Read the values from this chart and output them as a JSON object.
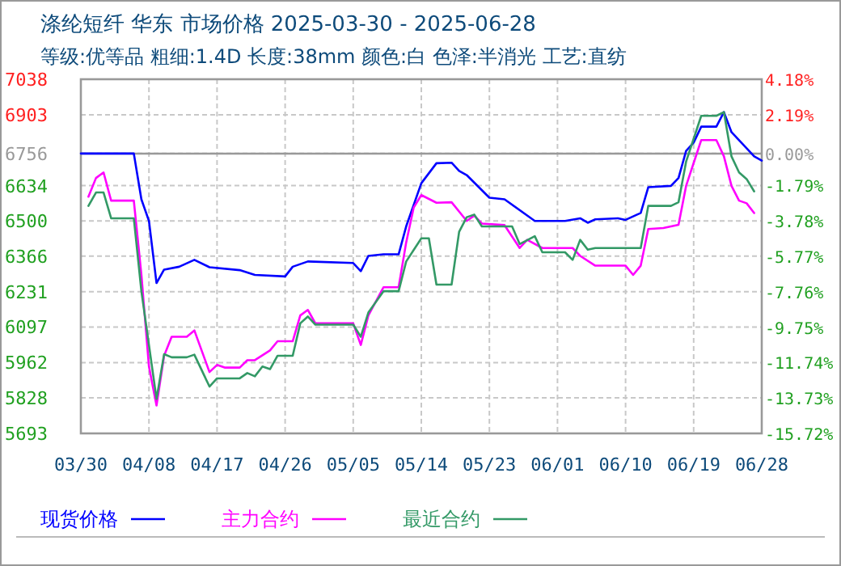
{
  "chart_data": {
    "type": "line",
    "title": "涤纶短纤 华东 市场价格 2025-03-30 - 2025-06-28",
    "subtitle": "等级:优等品 粗细:1.4D 长度:38mm 颜色:白 色泽:半消光 工艺:直纺",
    "series": [
      {
        "name": "现货价格",
        "color": "#0000ff",
        "x": [
          "2025-03-30",
          "2025-04-06",
          "2025-04-07",
          "2025-04-08",
          "2025-04-09",
          "2025-04-10",
          "2025-04-12",
          "2025-04-14",
          "2025-04-16",
          "2025-04-20",
          "2025-04-22",
          "2025-04-26",
          "2025-04-27",
          "2025-04-29",
          "2025-05-05",
          "2025-05-06",
          "2025-05-07",
          "2025-05-09",
          "2025-05-11",
          "2025-05-12",
          "2025-05-14",
          "2025-05-16",
          "2025-05-18",
          "2025-05-19",
          "2025-05-20",
          "2025-05-23",
          "2025-05-25",
          "2025-05-29",
          "2025-06-02",
          "2025-06-04",
          "2025-06-05",
          "2025-06-06",
          "2025-06-09",
          "2025-06-10",
          "2025-06-12",
          "2025-06-13",
          "2025-06-16",
          "2025-06-17",
          "2025-06-18",
          "2025-06-19",
          "2025-06-20",
          "2025-06-22",
          "2025-06-23",
          "2025-06-24",
          "2025-06-27",
          "2025-06-28"
        ],
        "values": [
          6756,
          6756,
          6582,
          6500,
          6264,
          6315,
          6326,
          6352,
          6324,
          6313,
          6295,
          6289,
          6326,
          6346,
          6340,
          6309,
          6367,
          6373,
          6373,
          6479,
          6643,
          6719,
          6721,
          6690,
          6674,
          6588,
          6582,
          6500,
          6500,
          6510,
          6493,
          6506,
          6510,
          6504,
          6530,
          6628,
          6633,
          6663,
          6766,
          6797,
          6858,
          6858,
          6913,
          6837,
          6745,
          6729
        ]
      },
      {
        "name": "主力合约",
        "color": "#ff00ff",
        "x": [
          "2025-03-31",
          "2025-04-01",
          "2025-04-02",
          "2025-04-03",
          "2025-04-06",
          "2025-04-07",
          "2025-04-08",
          "2025-04-09",
          "2025-04-10",
          "2025-04-11",
          "2025-04-13",
          "2025-04-14",
          "2025-04-16",
          "2025-04-17",
          "2025-04-18",
          "2025-04-20",
          "2025-04-21",
          "2025-04-22",
          "2025-04-24",
          "2025-04-25",
          "2025-04-27",
          "2025-04-28",
          "2025-04-29",
          "2025-04-30",
          "2025-05-05",
          "2025-05-06",
          "2025-05-07",
          "2025-05-09",
          "2025-05-11",
          "2025-05-12",
          "2025-05-13",
          "2025-05-14",
          "2025-05-16",
          "2025-05-18",
          "2025-05-20",
          "2025-05-21",
          "2025-05-22",
          "2025-05-25",
          "2025-05-27",
          "2025-05-28",
          "2025-05-30",
          "2025-06-03",
          "2025-06-04",
          "2025-06-06",
          "2025-06-10",
          "2025-06-11",
          "2025-06-12",
          "2025-06-13",
          "2025-06-15",
          "2025-06-17",
          "2025-06-18",
          "2025-06-20",
          "2025-06-22",
          "2025-06-23",
          "2025-06-24",
          "2025-06-25",
          "2025-06-26",
          "2025-06-27"
        ],
        "values": [
          6592,
          6663,
          6684,
          6577,
          6577,
          6295,
          5947,
          5799,
          5988,
          6060,
          6060,
          6084,
          5926,
          5953,
          5943,
          5943,
          5971,
          5971,
          6008,
          6043,
          6043,
          6141,
          6162,
          6111,
          6111,
          6029,
          6141,
          6248,
          6248,
          6418,
          6551,
          6598,
          6569,
          6571,
          6500,
          6520,
          6490,
          6484,
          6397,
          6428,
          6397,
          6397,
          6367,
          6330,
          6330,
          6295,
          6330,
          6469,
          6473,
          6485,
          6633,
          6807,
          6807,
          6745,
          6633,
          6577,
          6567,
          6530
        ]
      },
      {
        "name": "最近合约",
        "color": "#339966",
        "x": [
          "2025-03-31",
          "2025-04-01",
          "2025-04-02",
          "2025-04-03",
          "2025-04-06",
          "2025-04-07",
          "2025-04-08",
          "2025-04-09",
          "2025-04-10",
          "2025-04-11",
          "2025-04-13",
          "2025-04-14",
          "2025-04-16",
          "2025-04-17",
          "2025-04-20",
          "2025-04-21",
          "2025-04-22",
          "2025-04-23",
          "2025-04-24",
          "2025-04-25",
          "2025-04-27",
          "2025-04-28",
          "2025-04-29",
          "2025-04-30",
          "2025-05-05",
          "2025-05-06",
          "2025-05-07",
          "2025-05-09",
          "2025-05-11",
          "2025-05-12",
          "2025-05-14",
          "2025-05-15",
          "2025-05-16",
          "2025-05-18",
          "2025-05-19",
          "2025-05-20",
          "2025-05-21",
          "2025-05-22",
          "2025-05-26",
          "2025-05-27",
          "2025-05-29",
          "2025-05-30",
          "2025-06-02",
          "2025-06-03",
          "2025-06-04",
          "2025-06-05",
          "2025-06-06",
          "2025-06-12",
          "2025-06-13",
          "2025-06-16",
          "2025-06-17",
          "2025-06-18",
          "2025-06-20",
          "2025-06-22",
          "2025-06-23",
          "2025-06-24",
          "2025-06-25",
          "2025-06-26",
          "2025-06-27"
        ],
        "values": [
          6557,
          6608,
          6608,
          6510,
          6510,
          6233,
          6029,
          5824,
          5994,
          5982,
          5982,
          5992,
          5871,
          5902,
          5902,
          5922,
          5910,
          5947,
          5937,
          5988,
          5988,
          6111,
          6137,
          6106,
          6106,
          6060,
          6152,
          6233,
          6233,
          6346,
          6434,
          6434,
          6258,
          6258,
          6459,
          6514,
          6524,
          6479,
          6479,
          6412,
          6442,
          6381,
          6381,
          6352,
          6428,
          6391,
          6397,
          6397,
          6557,
          6557,
          6571,
          6725,
          6899,
          6899,
          6913,
          6745,
          6684,
          6659,
          6612
        ]
      }
    ],
    "xlim": [
      "2025-03-30",
      "2025-06-28"
    ],
    "xticks": [
      {
        "value": "2025-03-30",
        "label": "03/30"
      },
      {
        "value": "2025-04-08",
        "label": "04/08"
      },
      {
        "value": "2025-04-17",
        "label": "04/17"
      },
      {
        "value": "2025-04-26",
        "label": "04/26"
      },
      {
        "value": "2025-05-05",
        "label": "05/05"
      },
      {
        "value": "2025-05-14",
        "label": "05/14"
      },
      {
        "value": "2025-05-23",
        "label": "05/23"
      },
      {
        "value": "2025-06-01",
        "label": "06/01"
      },
      {
        "value": "2025-06-10",
        "label": "06/10"
      },
      {
        "value": "2025-06-19",
        "label": "06/19"
      },
      {
        "value": "2025-06-28",
        "label": "06/28"
      }
    ],
    "ylim": [
      5693,
      7038
    ],
    "yticks": [
      7038,
      6903,
      6756,
      6634,
      6500,
      6366,
      6231,
      6097,
      5962,
      5828,
      5693
    ],
    "y2lim": [
      -15.72,
      4.18
    ],
    "y2ticks": [
      {
        "value": 4.18,
        "label": "4.18%"
      },
      {
        "value": 2.19,
        "label": "2.19%"
      },
      {
        "value": 0,
        "label": "0.00%"
      },
      {
        "value": -1.79,
        "label": "-1.79%"
      },
      {
        "value": -3.78,
        "label": "-3.78%"
      },
      {
        "value": -5.77,
        "label": "-5.77%"
      },
      {
        "value": -7.76,
        "label": "-7.76%"
      },
      {
        "value": -9.75,
        "label": "-9.75%"
      },
      {
        "value": -11.74,
        "label": "-11.74%"
      },
      {
        "value": -13.73,
        "label": "-13.73%"
      },
      {
        "value": -15.72,
        "label": "-15.72%"
      }
    ],
    "ref_lines": [
      {
        "axis": "y2",
        "value": 0,
        "color": "#999999",
        "line_style": "solid"
      }
    ],
    "grid": true,
    "legend": "bottom",
    "marker": "none",
    "line_style": "solid"
  }
}
